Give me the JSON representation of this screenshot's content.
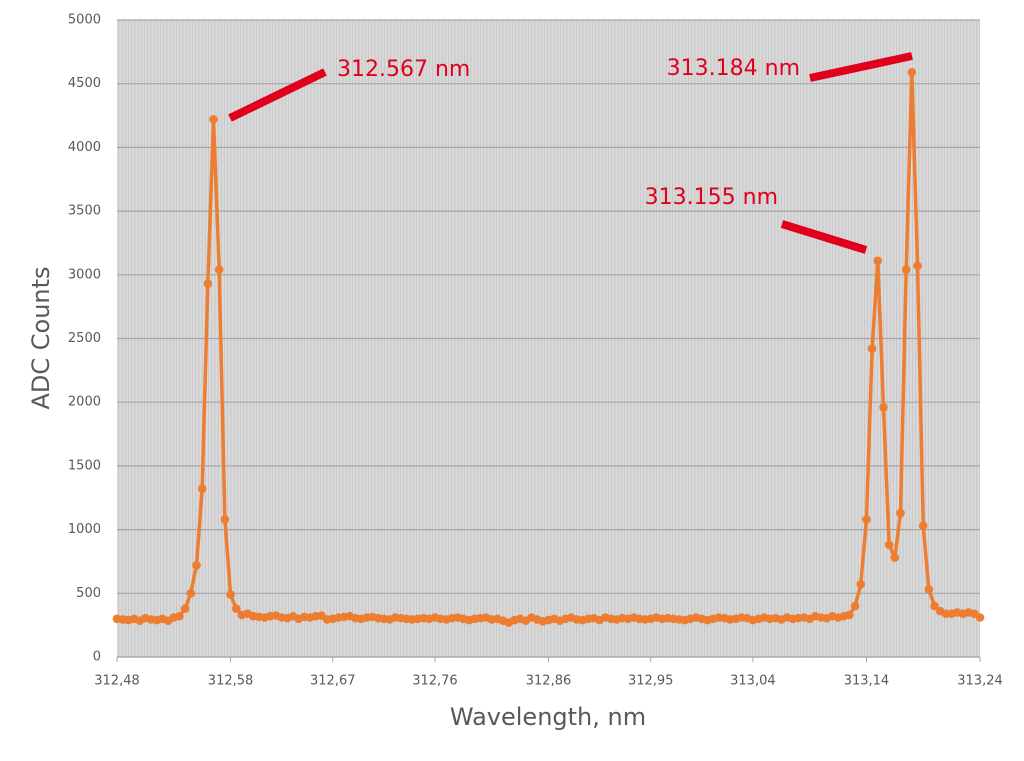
{
  "chart_data": {
    "type": "line",
    "xlabel": "Wavelength, nm",
    "ylabel": "ADC Counts",
    "xlim": [
      312.48,
      313.24
    ],
    "ylim": [
      0,
      5000
    ],
    "xticks": [
      {
        "value": 312.48,
        "label": "312,48"
      },
      {
        "value": 312.58,
        "label": "312,58"
      },
      {
        "value": 312.67,
        "label": "312,67"
      },
      {
        "value": 312.76,
        "label": "312,76"
      },
      {
        "value": 312.86,
        "label": "312,86"
      },
      {
        "value": 312.95,
        "label": "312,95"
      },
      {
        "value": 313.04,
        "label": "313,04"
      },
      {
        "value": 313.14,
        "label": "313,14"
      },
      {
        "value": 313.24,
        "label": "313,24"
      }
    ],
    "yticks": [
      0,
      500,
      1000,
      1500,
      2000,
      2500,
      3000,
      3500,
      4000,
      4500,
      5000
    ],
    "grid": true,
    "x": [
      312.48,
      312.485,
      312.49,
      312.495,
      312.5,
      312.505,
      312.51,
      312.515,
      312.52,
      312.525,
      312.53,
      312.535,
      312.54,
      312.545,
      312.55,
      312.555,
      312.56,
      312.565,
      312.57,
      312.575,
      312.58,
      312.585,
      312.59,
      312.595,
      312.6,
      312.605,
      312.61,
      312.615,
      312.62,
      312.625,
      312.63,
      312.635,
      312.64,
      312.645,
      312.65,
      312.655,
      312.66,
      312.665,
      312.67,
      312.675,
      312.68,
      312.685,
      312.69,
      312.695,
      312.7,
      312.705,
      312.71,
      312.715,
      312.72,
      312.725,
      312.73,
      312.735,
      312.74,
      312.745,
      312.75,
      312.755,
      312.76,
      312.765,
      312.77,
      312.775,
      312.78,
      312.785,
      312.79,
      312.795,
      312.8,
      312.805,
      312.81,
      312.815,
      312.82,
      312.825,
      312.83,
      312.835,
      312.84,
      312.845,
      312.85,
      312.855,
      312.86,
      312.865,
      312.87,
      312.875,
      312.88,
      312.885,
      312.89,
      312.895,
      312.9,
      312.905,
      312.91,
      312.915,
      312.92,
      312.925,
      312.93,
      312.935,
      312.94,
      312.945,
      312.95,
      312.955,
      312.96,
      312.965,
      312.97,
      312.975,
      312.98,
      312.985,
      312.99,
      312.995,
      313.0,
      313.005,
      313.01,
      313.015,
      313.02,
      313.025,
      313.03,
      313.035,
      313.04,
      313.045,
      313.05,
      313.055,
      313.06,
      313.065,
      313.07,
      313.075,
      313.08,
      313.085,
      313.09,
      313.095,
      313.1,
      313.105,
      313.11,
      313.115,
      313.12,
      313.125,
      313.13,
      313.135,
      313.14,
      313.145,
      313.15,
      313.155,
      313.16,
      313.165,
      313.17,
      313.175,
      313.18,
      313.185,
      313.19,
      313.195,
      313.2,
      313.205,
      313.21,
      313.215,
      313.22,
      313.225,
      313.23,
      313.235,
      313.24
    ],
    "series": [
      {
        "color": "#ed7d31",
        "values": [
          300,
          295,
          290,
          300,
          285,
          305,
          295,
          290,
          300,
          285,
          310,
          320,
          380,
          500,
          720,
          1320,
          2930,
          4220,
          3040,
          1080,
          490,
          380,
          330,
          340,
          320,
          315,
          310,
          320,
          325,
          310,
          305,
          320,
          300,
          315,
          310,
          320,
          325,
          295,
          300,
          310,
          315,
          320,
          305,
          300,
          310,
          315,
          305,
          300,
          295,
          310,
          305,
          300,
          295,
          300,
          305,
          300,
          310,
          300,
          295,
          305,
          310,
          300,
          290,
          300,
          305,
          310,
          295,
          300,
          285,
          270,
          290,
          300,
          285,
          310,
          295,
          280,
          290,
          300,
          285,
          300,
          310,
          295,
          290,
          300,
          305,
          290,
          310,
          300,
          295,
          305,
          300,
          310,
          300,
          295,
          300,
          310,
          300,
          305,
          300,
          295,
          290,
          300,
          310,
          300,
          290,
          300,
          310,
          305,
          295,
          300,
          310,
          305,
          290,
          300,
          310,
          300,
          305,
          295,
          310,
          300,
          305,
          310,
          300,
          320,
          310,
          305,
          320,
          310,
          320,
          330,
          400,
          570,
          1080,
          2420,
          3110,
          1960,
          880,
          780,
          1130,
          3040,
          4590,
          3070,
          1030,
          530,
          400,
          360,
          340,
          340,
          350,
          340,
          350,
          340,
          310
        ]
      }
    ],
    "annotations": [
      {
        "text": "312.567 nm"
      },
      {
        "text": "313.184 nm"
      },
      {
        "text": "313.155 nm"
      }
    ]
  }
}
